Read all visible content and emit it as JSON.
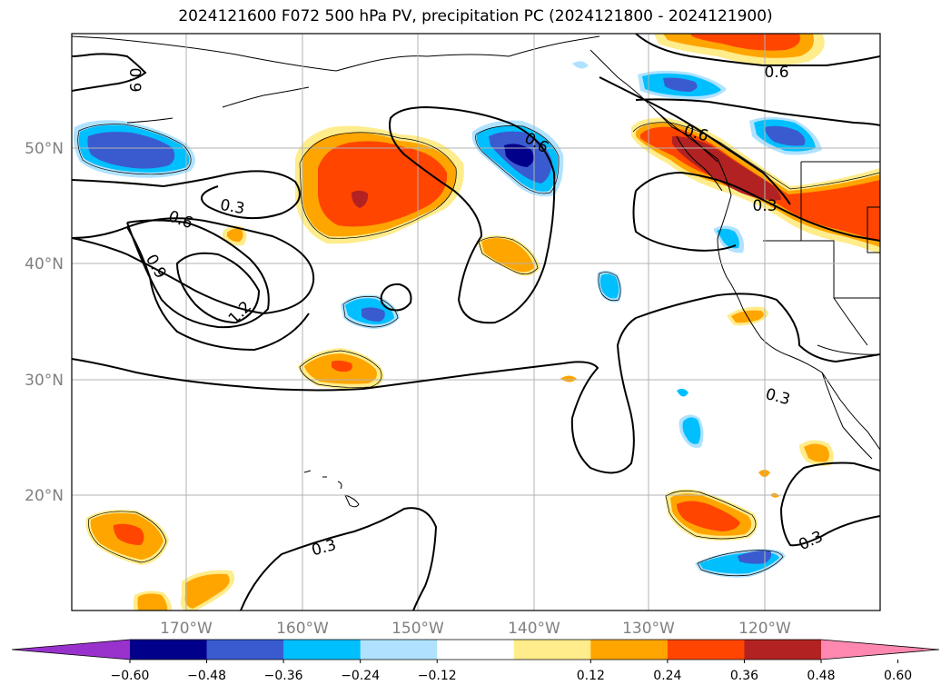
{
  "title": "2024121600 F072 500 hPa PV, precipitation PC (2024121800 - 2024121900)",
  "lat_labels": [
    "50°N",
    "40°N",
    "30°N",
    "20°N"
  ],
  "lon_labels": [
    "170°W",
    "160°W",
    "150°W",
    "140°W",
    "130°W",
    "120°W"
  ],
  "contour_labels": [
    "0.9",
    "0.6",
    "0.6",
    "0.3",
    "0.6",
    "0.9",
    "1.2",
    "0.6",
    "0.3",
    "0.3",
    "0.3",
    "0.3"
  ],
  "colorbar": {
    "ticks": [
      "−0.60",
      "−0.48",
      "−0.36",
      "−0.24",
      "−0.12",
      "0.12",
      "0.24",
      "0.36",
      "0.48",
      "0.60"
    ],
    "colors": [
      "#9932cc",
      "#00008b",
      "#3a5bd0",
      "#00bfff",
      "#b0e2ff",
      "#ffffff",
      "#ffec8b",
      "#ffa500",
      "#ff4500",
      "#b22222",
      "#ff88b0"
    ]
  },
  "palette": {
    "pos1": "#ffec8b",
    "pos2": "#ffa500",
    "pos3": "#ff4500",
    "pos4": "#b22222",
    "neg1": "#b0e2ff",
    "neg2": "#00bfff",
    "neg3": "#3a5bd0",
    "neg4": "#00008b"
  }
}
